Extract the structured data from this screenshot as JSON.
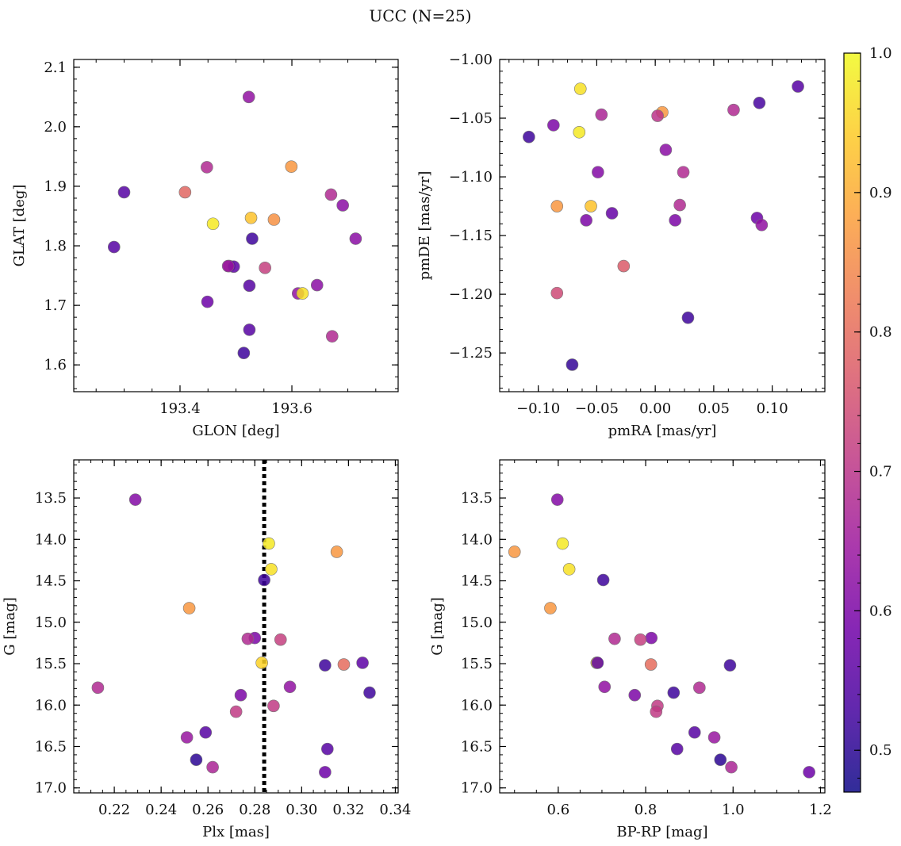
{
  "figure": {
    "title": "UCC (N=25)"
  },
  "colorbar": {
    "min": 0.47,
    "max": 1.0,
    "ticks": [
      "0.5",
      "0.6",
      "0.7",
      "0.8",
      "0.9",
      "1.0"
    ],
    "tick_values": [
      0.5,
      0.6,
      0.7,
      0.8,
      0.9,
      1.0
    ],
    "colormap": [
      "#0d0887",
      "#46039f",
      "#7201a8",
      "#9c179e",
      "#bd3786",
      "#d8576b",
      "#ed7953",
      "#fb9f3a",
      "#fdca26",
      "#f0f921"
    ]
  },
  "chart_data": [
    {
      "type": "scatter",
      "title": "",
      "xlabel": "GLON [deg]",
      "ylabel": "GLAT [deg]",
      "xlim": [
        193.21,
        193.79
      ],
      "ylim": [
        1.555,
        2.113
      ],
      "xticks": [
        193.4,
        193.6
      ],
      "xtick_labels": [
        "193.4",
        "193.6"
      ],
      "yticks": [
        1.6,
        1.7,
        1.8,
        1.9,
        2.0,
        2.1
      ],
      "ytick_labels": [
        "1.6",
        "1.7",
        "1.8",
        "1.9",
        "2.0",
        "2.1"
      ],
      "invert_y": false,
      "points": [
        {
          "x": 193.523,
          "y": 2.05,
          "c": 0.63
        },
        {
          "x": 193.3,
          "y": 1.89,
          "c": 0.55
        },
        {
          "x": 193.282,
          "y": 1.798,
          "c": 0.55
        },
        {
          "x": 193.448,
          "y": 1.932,
          "c": 0.68
        },
        {
          "x": 193.409,
          "y": 1.89,
          "c": 0.79
        },
        {
          "x": 193.459,
          "y": 1.837,
          "c": 0.98
        },
        {
          "x": 193.527,
          "y": 1.847,
          "c": 0.93
        },
        {
          "x": 193.599,
          "y": 1.933,
          "c": 0.87
        },
        {
          "x": 193.568,
          "y": 1.844,
          "c": 0.86
        },
        {
          "x": 193.67,
          "y": 1.886,
          "c": 0.68
        },
        {
          "x": 193.691,
          "y": 1.868,
          "c": 0.62
        },
        {
          "x": 193.529,
          "y": 1.812,
          "c": 0.52
        },
        {
          "x": 193.714,
          "y": 1.812,
          "c": 0.62
        },
        {
          "x": 193.488,
          "y": 1.766,
          "c": 0.68
        },
        {
          "x": 193.496,
          "y": 1.765,
          "c": 0.56
        },
        {
          "x": 193.552,
          "y": 1.763,
          "c": 0.72
        },
        {
          "x": 193.524,
          "y": 1.733,
          "c": 0.55
        },
        {
          "x": 193.645,
          "y": 1.734,
          "c": 0.62
        },
        {
          "x": 193.611,
          "y": 1.72,
          "c": 0.63
        },
        {
          "x": 193.619,
          "y": 1.72,
          "c": 0.97
        },
        {
          "x": 193.449,
          "y": 1.706,
          "c": 0.58
        },
        {
          "x": 193.672,
          "y": 1.648,
          "c": 0.68
        },
        {
          "x": 193.524,
          "y": 1.659,
          "c": 0.55
        },
        {
          "x": 193.514,
          "y": 1.62,
          "c": 0.52
        },
        {
          "x": 193.486,
          "y": 1.766,
          "c": 0.64
        }
      ]
    },
    {
      "type": "scatter",
      "title": "",
      "xlabel": "pmRA [mas/yr]",
      "ylabel": "pmDE [mas/yr]",
      "xlim": [
        -0.133,
        0.145
      ],
      "ylim": [
        -1.283,
        -1.0
      ],
      "xticks": [
        -0.1,
        -0.05,
        0.0,
        0.05,
        0.1
      ],
      "xtick_labels": [
        "−0.10",
        "−0.05",
        "0.00",
        "0.05",
        "0.10"
      ],
      "yticks": [
        -1.25,
        -1.2,
        -1.15,
        -1.1,
        -1.05,
        -1.0
      ],
      "ytick_labels": [
        "−1.25",
        "−1.20",
        "−1.15",
        "−1.10",
        "−1.05",
        "−1.00"
      ],
      "invert_y": false,
      "points": [
        {
          "x": 0.122,
          "y": -1.023,
          "c": 0.55
        },
        {
          "x": 0.089,
          "y": -1.037,
          "c": 0.53
        },
        {
          "x": 0.067,
          "y": -1.043,
          "c": 0.68
        },
        {
          "x": -0.064,
          "y": -1.025,
          "c": 0.97
        },
        {
          "x": 0.006,
          "y": -1.045,
          "c": 0.87
        },
        {
          "x": 0.002,
          "y": -1.048,
          "c": 0.7
        },
        {
          "x": -0.046,
          "y": -1.047,
          "c": 0.67
        },
        {
          "x": -0.087,
          "y": -1.056,
          "c": 0.6
        },
        {
          "x": -0.065,
          "y": -1.062,
          "c": 0.98
        },
        {
          "x": -0.108,
          "y": -1.066,
          "c": 0.52
        },
        {
          "x": 0.009,
          "y": -1.077,
          "c": 0.62
        },
        {
          "x": -0.049,
          "y": -1.096,
          "c": 0.61
        },
        {
          "x": 0.024,
          "y": -1.096,
          "c": 0.68
        },
        {
          "x": -0.084,
          "y": -1.125,
          "c": 0.87
        },
        {
          "x": -0.055,
          "y": -1.125,
          "c": 0.93
        },
        {
          "x": 0.021,
          "y": -1.124,
          "c": 0.68
        },
        {
          "x": -0.037,
          "y": -1.131,
          "c": 0.57
        },
        {
          "x": -0.059,
          "y": -1.137,
          "c": 0.6
        },
        {
          "x": 0.017,
          "y": -1.137,
          "c": 0.6
        },
        {
          "x": 0.087,
          "y": -1.135,
          "c": 0.58
        },
        {
          "x": 0.091,
          "y": -1.141,
          "c": 0.63
        },
        {
          "x": -0.027,
          "y": -1.176,
          "c": 0.77
        },
        {
          "x": -0.084,
          "y": -1.199,
          "c": 0.74
        },
        {
          "x": 0.028,
          "y": -1.22,
          "c": 0.52
        },
        {
          "x": -0.071,
          "y": -1.26,
          "c": 0.51
        }
      ]
    },
    {
      "type": "scatter",
      "title": "",
      "xlabel": "Plx [mas]",
      "ylabel": "G [mag]",
      "xlim": [
        0.2027,
        0.3412
      ],
      "ylim": [
        17.06,
        13.04
      ],
      "xticks": [
        0.22,
        0.24,
        0.26,
        0.28,
        0.3,
        0.32,
        0.34
      ],
      "xtick_labels": [
        "0.22",
        "0.24",
        "0.26",
        "0.28",
        "0.30",
        "0.32",
        "0.34"
      ],
      "yticks": [
        13.5,
        14.0,
        14.5,
        15.0,
        15.5,
        16.0,
        16.5,
        17.0
      ],
      "ytick_labels": [
        "13.5",
        "14.0",
        "14.5",
        "15.0",
        "15.5",
        "16.0",
        "16.5",
        "17.0"
      ],
      "invert_y": true,
      "vline": {
        "x": 0.284,
        "style": "dotted"
      },
      "points": [
        {
          "x": 0.229,
          "y": 13.52,
          "c": 0.61
        },
        {
          "x": 0.286,
          "y": 14.05,
          "c": 0.98
        },
        {
          "x": 0.315,
          "y": 14.15,
          "c": 0.87
        },
        {
          "x": 0.287,
          "y": 14.36,
          "c": 0.97
        },
        {
          "x": 0.284,
          "y": 14.49,
          "c": 0.52
        },
        {
          "x": 0.252,
          "y": 14.83,
          "c": 0.87
        },
        {
          "x": 0.28,
          "y": 15.19,
          "c": 0.6
        },
        {
          "x": 0.277,
          "y": 15.2,
          "c": 0.68
        },
        {
          "x": 0.291,
          "y": 15.21,
          "c": 0.72
        },
        {
          "x": 0.283,
          "y": 15.49,
          "c": 0.95
        },
        {
          "x": 0.326,
          "y": 15.49,
          "c": 0.56
        },
        {
          "x": 0.318,
          "y": 15.51,
          "c": 0.8
        },
        {
          "x": 0.31,
          "y": 15.52,
          "c": 0.52
        },
        {
          "x": 0.213,
          "y": 15.79,
          "c": 0.68
        },
        {
          "x": 0.295,
          "y": 15.78,
          "c": 0.63
        },
        {
          "x": 0.329,
          "y": 15.85,
          "c": 0.52
        },
        {
          "x": 0.274,
          "y": 15.88,
          "c": 0.6
        },
        {
          "x": 0.288,
          "y": 16.01,
          "c": 0.71
        },
        {
          "x": 0.272,
          "y": 16.08,
          "c": 0.71
        },
        {
          "x": 0.259,
          "y": 16.33,
          "c": 0.55
        },
        {
          "x": 0.251,
          "y": 16.39,
          "c": 0.64
        },
        {
          "x": 0.311,
          "y": 16.53,
          "c": 0.55
        },
        {
          "x": 0.255,
          "y": 16.66,
          "c": 0.5
        },
        {
          "x": 0.262,
          "y": 16.75,
          "c": 0.67
        },
        {
          "x": 0.31,
          "y": 16.81,
          "c": 0.58
        }
      ]
    },
    {
      "type": "scatter",
      "title": "",
      "xlabel": "BP-RP [mag]",
      "ylabel": "G [mag]",
      "xlim": [
        0.466,
        1.21
      ],
      "ylim": [
        17.06,
        13.04
      ],
      "xticks": [
        0.6,
        0.8,
        1.0,
        1.2
      ],
      "xtick_labels": [
        "0.6",
        "0.8",
        "1.0",
        "1.2"
      ],
      "yticks": [
        13.5,
        14.0,
        14.5,
        15.0,
        15.5,
        16.0,
        16.5,
        17.0
      ],
      "ytick_labels": [
        "13.5",
        "14.0",
        "14.5",
        "15.0",
        "15.5",
        "16.0",
        "16.5",
        "17.0"
      ],
      "invert_y": true,
      "points": [
        {
          "x": 0.598,
          "y": 13.52,
          "c": 0.61
        },
        {
          "x": 0.61,
          "y": 14.05,
          "c": 0.98
        },
        {
          "x": 0.5,
          "y": 14.15,
          "c": 0.87
        },
        {
          "x": 0.625,
          "y": 14.36,
          "c": 0.97
        },
        {
          "x": 0.703,
          "y": 14.49,
          "c": 0.52
        },
        {
          "x": 0.582,
          "y": 14.83,
          "c": 0.87
        },
        {
          "x": 0.813,
          "y": 15.19,
          "c": 0.6
        },
        {
          "x": 0.729,
          "y": 15.2,
          "c": 0.68
        },
        {
          "x": 0.788,
          "y": 15.21,
          "c": 0.72
        },
        {
          "x": 0.688,
          "y": 15.49,
          "c": 0.95
        },
        {
          "x": 0.812,
          "y": 15.51,
          "c": 0.8
        },
        {
          "x": 0.993,
          "y": 15.52,
          "c": 0.52
        },
        {
          "x": 0.706,
          "y": 15.78,
          "c": 0.63
        },
        {
          "x": 0.923,
          "y": 15.79,
          "c": 0.68
        },
        {
          "x": 0.864,
          "y": 15.85,
          "c": 0.52
        },
        {
          "x": 0.775,
          "y": 15.88,
          "c": 0.6
        },
        {
          "x": 0.827,
          "y": 16.01,
          "c": 0.71
        },
        {
          "x": 0.824,
          "y": 16.08,
          "c": 0.71
        },
        {
          "x": 0.912,
          "y": 16.33,
          "c": 0.55
        },
        {
          "x": 0.957,
          "y": 16.39,
          "c": 0.64
        },
        {
          "x": 0.872,
          "y": 16.53,
          "c": 0.55
        },
        {
          "x": 0.971,
          "y": 16.66,
          "c": 0.5
        },
        {
          "x": 0.996,
          "y": 16.75,
          "c": 0.67
        },
        {
          "x": 1.174,
          "y": 16.81,
          "c": 0.58
        },
        {
          "x": 0.69,
          "y": 15.49,
          "c": 0.56
        }
      ]
    }
  ]
}
